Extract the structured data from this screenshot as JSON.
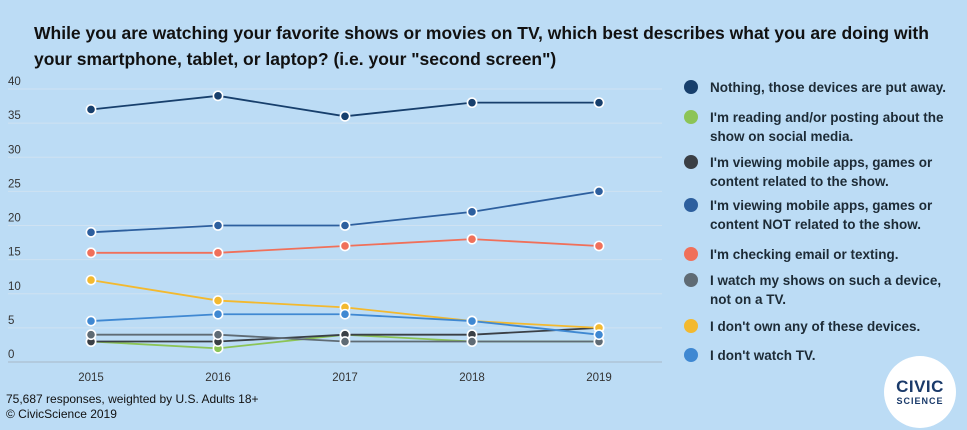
{
  "title": "While you are watching your favorite shows or movies on TV, which best describes what you are doing with your smartphone, tablet, or laptop? (i.e. your \"second screen\")",
  "footnote": {
    "line1": "75,687 responses, weighted by U.S. Adults 18+",
    "line2": "© CivicScience 2019"
  },
  "logo": {
    "top": "CIVIC",
    "bottom": "SCIENCE"
  },
  "chart_data": {
    "type": "line",
    "title": "While you are watching your favorite shows or movies on TV, which best describes what you are doing with your smartphone, tablet, or laptop? (i.e. your \"second screen\")",
    "xlabel": "",
    "ylabel": "",
    "x": [
      "2015",
      "2016",
      "2017",
      "2018",
      "2019"
    ],
    "ylim": [
      0,
      40
    ],
    "yticks": [
      0,
      5,
      10,
      15,
      20,
      25,
      30,
      35,
      40
    ],
    "grid": "horizontal",
    "legend": "right",
    "series": [
      {
        "name": "Nothing, those devices are put away.",
        "color": "#173f6c",
        "values": [
          37,
          39,
          36,
          38,
          38
        ]
      },
      {
        "name": "I'm reading and/or posting about the show on social media.",
        "color": "#8cc456",
        "values": [
          3,
          2,
          4,
          3,
          3
        ]
      },
      {
        "name": "I'm viewing mobile apps, games or content related to the show.",
        "color": "#3a3f45",
        "values": [
          3,
          3,
          4,
          4,
          5
        ]
      },
      {
        "name": "I'm viewing mobile apps, games or content NOT related to the show.",
        "color": "#2d5f9e",
        "values": [
          19,
          20,
          20,
          22,
          25
        ]
      },
      {
        "name": "I'm checking email or texting.",
        "color": "#f0705a",
        "values": [
          16,
          16,
          17,
          18,
          17
        ]
      },
      {
        "name": "I watch my shows on such a device, not on a TV.",
        "color": "#5f6b74",
        "values": [
          4,
          4,
          3,
          3,
          3
        ]
      },
      {
        "name": "I don't own any of these devices.",
        "color": "#f3b92f",
        "values": [
          12,
          9,
          8,
          6,
          5
        ]
      },
      {
        "name": "I don't watch TV.",
        "color": "#3f88d2",
        "values": [
          6,
          7,
          7,
          6,
          4
        ]
      }
    ]
  }
}
